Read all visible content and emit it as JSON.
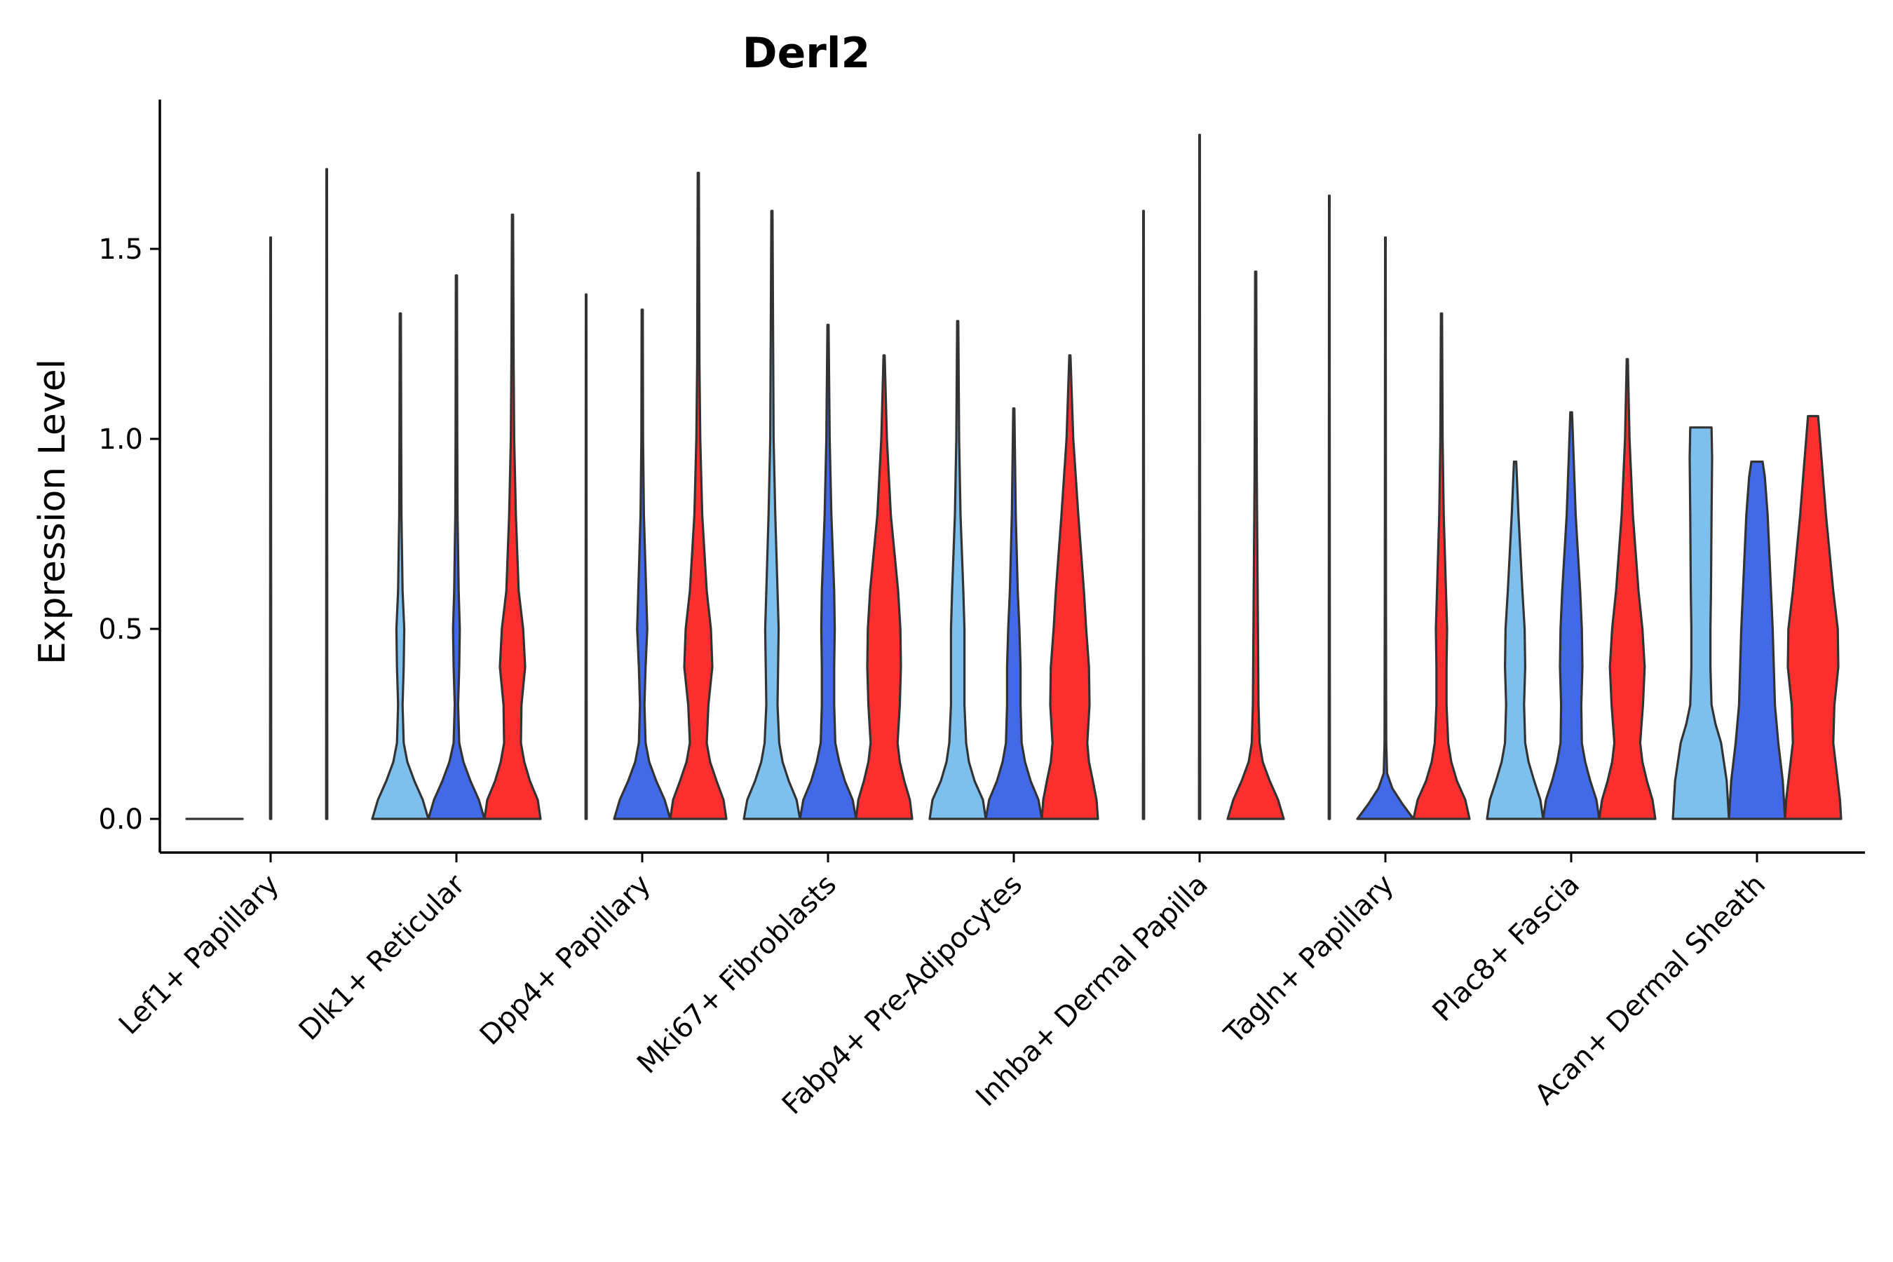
{
  "chart_data": {
    "type": "violin",
    "title": "Derl2",
    "xlabel": "",
    "ylabel": "Expression Level",
    "ylim": [
      -0.09,
      1.9
    ],
    "yticks": [
      0.0,
      0.5,
      1.0,
      1.5
    ],
    "ytick_labels": [
      "0.0",
      "0.5",
      "1.0",
      "1.5"
    ],
    "colors": {
      "group1": "#7dc0ee",
      "group2": "#4169e8",
      "group3": "#ff2f2f"
    },
    "categories": [
      "Lef1+ Papillary",
      "Dlk1+ Reticular",
      "Dpp4+ Papillary",
      "Mki67+ Fibroblasts",
      "Fabp4+ Pre-Adipocytes",
      "Inhba+ Dermal Papilla",
      "Tagln+ Papillary",
      "Plac8+ Fascia",
      "Acan+ Dermal Sheath"
    ],
    "violins": [
      {
        "category": "Lef1+ Papillary",
        "group": 1,
        "max": 0.0,
        "profile": [
          [
            0,
            1
          ],
          [
            0.01,
            0
          ]
        ]
      },
      {
        "category": "Lef1+ Papillary",
        "group": 2,
        "max": 1.53,
        "profile": [
          [
            0,
            0.02
          ],
          [
            0.1,
            0.02
          ],
          [
            1.53,
            0.01
          ]
        ]
      },
      {
        "category": "Lef1+ Papillary",
        "group": 3,
        "max": 1.71,
        "profile": [
          [
            0,
            0.02
          ],
          [
            0.1,
            0.02
          ],
          [
            1.71,
            0.01
          ]
        ]
      },
      {
        "category": "Dlk1+ Reticular",
        "group": 1,
        "max": 1.33,
        "profile": [
          [
            0,
            1
          ],
          [
            0.05,
            0.8
          ],
          [
            0.1,
            0.5
          ],
          [
            0.15,
            0.25
          ],
          [
            0.2,
            0.12
          ],
          [
            0.3,
            0.08
          ],
          [
            0.4,
            0.12
          ],
          [
            0.5,
            0.14
          ],
          [
            0.6,
            0.08
          ],
          [
            0.8,
            0.04
          ],
          [
            1.0,
            0.03
          ],
          [
            1.33,
            0.02
          ]
        ]
      },
      {
        "category": "Dlk1+ Reticular",
        "group": 2,
        "max": 1.43,
        "profile": [
          [
            0,
            1
          ],
          [
            0.05,
            0.8
          ],
          [
            0.1,
            0.5
          ],
          [
            0.15,
            0.25
          ],
          [
            0.2,
            0.1
          ],
          [
            0.3,
            0.06
          ],
          [
            0.4,
            0.1
          ],
          [
            0.5,
            0.12
          ],
          [
            0.6,
            0.08
          ],
          [
            0.8,
            0.04
          ],
          [
            1.0,
            0.03
          ],
          [
            1.43,
            0.02
          ]
        ]
      },
      {
        "category": "Dlk1+ Reticular",
        "group": 3,
        "max": 1.59,
        "profile": [
          [
            0,
            1
          ],
          [
            0.05,
            0.9
          ],
          [
            0.1,
            0.62
          ],
          [
            0.15,
            0.42
          ],
          [
            0.2,
            0.3
          ],
          [
            0.3,
            0.32
          ],
          [
            0.4,
            0.45
          ],
          [
            0.5,
            0.38
          ],
          [
            0.6,
            0.22
          ],
          [
            0.8,
            0.12
          ],
          [
            1.0,
            0.06
          ],
          [
            1.2,
            0.04
          ],
          [
            1.59,
            0.02
          ]
        ]
      },
      {
        "category": "Dpp4+ Papillary",
        "group": 1,
        "max": 1.38,
        "profile": [
          [
            0,
            0.02
          ],
          [
            0.1,
            0.02
          ],
          [
            1.38,
            0.01
          ]
        ]
      },
      {
        "category": "Dpp4+ Papillary",
        "group": 2,
        "max": 1.34,
        "profile": [
          [
            0,
            1
          ],
          [
            0.05,
            0.8
          ],
          [
            0.1,
            0.5
          ],
          [
            0.15,
            0.25
          ],
          [
            0.2,
            0.12
          ],
          [
            0.3,
            0.08
          ],
          [
            0.4,
            0.12
          ],
          [
            0.5,
            0.18
          ],
          [
            0.6,
            0.14
          ],
          [
            0.8,
            0.06
          ],
          [
            1.0,
            0.03
          ],
          [
            1.34,
            0.02
          ]
        ]
      },
      {
        "category": "Dpp4+ Papillary",
        "group": 3,
        "max": 1.7,
        "profile": [
          [
            0,
            1
          ],
          [
            0.05,
            0.9
          ],
          [
            0.1,
            0.65
          ],
          [
            0.15,
            0.42
          ],
          [
            0.2,
            0.3
          ],
          [
            0.3,
            0.36
          ],
          [
            0.4,
            0.5
          ],
          [
            0.5,
            0.45
          ],
          [
            0.6,
            0.3
          ],
          [
            0.8,
            0.14
          ],
          [
            1.0,
            0.07
          ],
          [
            1.2,
            0.04
          ],
          [
            1.7,
            0.02
          ]
        ]
      },
      {
        "category": "Mki67+ Fibroblasts",
        "group": 1,
        "max": 1.6,
        "profile": [
          [
            0,
            1
          ],
          [
            0.05,
            0.88
          ],
          [
            0.1,
            0.6
          ],
          [
            0.15,
            0.38
          ],
          [
            0.2,
            0.26
          ],
          [
            0.3,
            0.2
          ],
          [
            0.4,
            0.22
          ],
          [
            0.5,
            0.24
          ],
          [
            0.6,
            0.2
          ],
          [
            0.8,
            0.12
          ],
          [
            1.0,
            0.06
          ],
          [
            1.6,
            0.02
          ]
        ]
      },
      {
        "category": "Mki67+ Fibroblasts",
        "group": 2,
        "max": 1.3,
        "profile": [
          [
            0,
            1
          ],
          [
            0.05,
            0.88
          ],
          [
            0.1,
            0.6
          ],
          [
            0.15,
            0.4
          ],
          [
            0.2,
            0.26
          ],
          [
            0.3,
            0.22
          ],
          [
            0.4,
            0.22
          ],
          [
            0.5,
            0.24
          ],
          [
            0.6,
            0.22
          ],
          [
            0.8,
            0.12
          ],
          [
            1.0,
            0.06
          ],
          [
            1.3,
            0.02
          ]
        ]
      },
      {
        "category": "Mki67+ Fibroblasts",
        "group": 3,
        "max": 1.22,
        "profile": [
          [
            0,
            1
          ],
          [
            0.05,
            0.92
          ],
          [
            0.1,
            0.72
          ],
          [
            0.15,
            0.56
          ],
          [
            0.2,
            0.48
          ],
          [
            0.3,
            0.56
          ],
          [
            0.4,
            0.6
          ],
          [
            0.5,
            0.58
          ],
          [
            0.6,
            0.5
          ],
          [
            0.8,
            0.24
          ],
          [
            1.0,
            0.1
          ],
          [
            1.22,
            0.02
          ]
        ]
      },
      {
        "category": "Fabp4+ Pre-Adipocytes",
        "group": 1,
        "max": 1.31,
        "profile": [
          [
            0,
            1
          ],
          [
            0.05,
            0.9
          ],
          [
            0.1,
            0.6
          ],
          [
            0.15,
            0.4
          ],
          [
            0.2,
            0.3
          ],
          [
            0.3,
            0.24
          ],
          [
            0.4,
            0.24
          ],
          [
            0.5,
            0.24
          ],
          [
            0.6,
            0.2
          ],
          [
            0.8,
            0.1
          ],
          [
            1.0,
            0.05
          ],
          [
            1.31,
            0.02
          ]
        ]
      },
      {
        "category": "Fabp4+ Pre-Adipocytes",
        "group": 2,
        "max": 1.08,
        "profile": [
          [
            0,
            1
          ],
          [
            0.05,
            0.88
          ],
          [
            0.1,
            0.6
          ],
          [
            0.15,
            0.4
          ],
          [
            0.2,
            0.28
          ],
          [
            0.3,
            0.24
          ],
          [
            0.4,
            0.24
          ],
          [
            0.5,
            0.2
          ],
          [
            0.6,
            0.14
          ],
          [
            0.8,
            0.07
          ],
          [
            1.08,
            0.02
          ]
        ]
      },
      {
        "category": "Fabp4+ Pre-Adipocytes",
        "group": 3,
        "max": 1.22,
        "profile": [
          [
            0,
            1
          ],
          [
            0.05,
            0.95
          ],
          [
            0.1,
            0.82
          ],
          [
            0.15,
            0.68
          ],
          [
            0.2,
            0.62
          ],
          [
            0.3,
            0.7
          ],
          [
            0.4,
            0.68
          ],
          [
            0.5,
            0.58
          ],
          [
            0.6,
            0.5
          ],
          [
            0.8,
            0.3
          ],
          [
            1.0,
            0.12
          ],
          [
            1.22,
            0.02
          ]
        ]
      },
      {
        "category": "Inhba+ Dermal Papilla",
        "group": 1,
        "max": 1.6,
        "profile": [
          [
            0,
            0.02
          ],
          [
            0.1,
            0.02
          ],
          [
            1.6,
            0.01
          ]
        ]
      },
      {
        "category": "Inhba+ Dermal Papilla",
        "group": 2,
        "max": 1.8,
        "profile": [
          [
            0,
            0.02
          ],
          [
            0.1,
            0.02
          ],
          [
            1.8,
            0.01
          ]
        ]
      },
      {
        "category": "Inhba+ Dermal Papilla",
        "group": 3,
        "max": 1.44,
        "profile": [
          [
            0,
            1
          ],
          [
            0.05,
            0.8
          ],
          [
            0.1,
            0.5
          ],
          [
            0.15,
            0.25
          ],
          [
            0.2,
            0.14
          ],
          [
            0.3,
            0.1
          ],
          [
            0.5,
            0.08
          ],
          [
            0.7,
            0.06
          ],
          [
            0.9,
            0.04
          ],
          [
            1.1,
            0.03
          ],
          [
            1.44,
            0.02
          ]
        ]
      },
      {
        "category": "Tagln+ Papillary",
        "group": 1,
        "max": 1.64,
        "profile": [
          [
            0,
            0.02
          ],
          [
            0.1,
            0.02
          ],
          [
            1.64,
            0.01
          ]
        ]
      },
      {
        "category": "Tagln+ Papillary",
        "group": 2,
        "max": 1.53,
        "profile": [
          [
            0,
            1
          ],
          [
            0.04,
            0.6
          ],
          [
            0.08,
            0.25
          ],
          [
            0.12,
            0.06
          ],
          [
            0.2,
            0.03
          ],
          [
            0.6,
            0.02
          ],
          [
            1.53,
            0.01
          ]
        ]
      },
      {
        "category": "Tagln+ Papillary",
        "group": 3,
        "max": 1.33,
        "profile": [
          [
            0,
            1
          ],
          [
            0.05,
            0.85
          ],
          [
            0.1,
            0.55
          ],
          [
            0.15,
            0.35
          ],
          [
            0.2,
            0.24
          ],
          [
            0.3,
            0.18
          ],
          [
            0.4,
            0.18
          ],
          [
            0.5,
            0.2
          ],
          [
            0.6,
            0.16
          ],
          [
            0.8,
            0.08
          ],
          [
            1.0,
            0.04
          ],
          [
            1.33,
            0.02
          ]
        ]
      },
      {
        "category": "Plac8+ Fascia",
        "group": 1,
        "max": 0.94,
        "profile": [
          [
            0,
            1
          ],
          [
            0.05,
            0.9
          ],
          [
            0.1,
            0.68
          ],
          [
            0.15,
            0.48
          ],
          [
            0.2,
            0.36
          ],
          [
            0.3,
            0.32
          ],
          [
            0.4,
            0.36
          ],
          [
            0.5,
            0.34
          ],
          [
            0.6,
            0.26
          ],
          [
            0.8,
            0.12
          ],
          [
            0.94,
            0.04
          ]
        ]
      },
      {
        "category": "Plac8+ Fascia",
        "group": 2,
        "max": 1.07,
        "profile": [
          [
            0,
            1
          ],
          [
            0.05,
            0.9
          ],
          [
            0.1,
            0.68
          ],
          [
            0.15,
            0.5
          ],
          [
            0.2,
            0.38
          ],
          [
            0.3,
            0.36
          ],
          [
            0.4,
            0.4
          ],
          [
            0.5,
            0.38
          ],
          [
            0.6,
            0.32
          ],
          [
            0.8,
            0.16
          ],
          [
            1.07,
            0.03
          ]
        ]
      },
      {
        "category": "Plac8+ Fascia",
        "group": 3,
        "max": 1.21,
        "profile": [
          [
            0,
            1
          ],
          [
            0.05,
            0.9
          ],
          [
            0.1,
            0.7
          ],
          [
            0.15,
            0.54
          ],
          [
            0.2,
            0.46
          ],
          [
            0.3,
            0.56
          ],
          [
            0.4,
            0.62
          ],
          [
            0.5,
            0.54
          ],
          [
            0.6,
            0.4
          ],
          [
            0.8,
            0.2
          ],
          [
            1.0,
            0.08
          ],
          [
            1.21,
            0.02
          ]
        ]
      },
      {
        "category": "Acan+ Dermal Sheath",
        "group": 1,
        "max": 1.03,
        "profile": [
          [
            0,
            1
          ],
          [
            0.1,
            0.92
          ],
          [
            0.2,
            0.72
          ],
          [
            0.25,
            0.52
          ],
          [
            0.3,
            0.38
          ],
          [
            0.4,
            0.34
          ],
          [
            0.5,
            0.34
          ],
          [
            0.6,
            0.36
          ],
          [
            0.8,
            0.38
          ],
          [
            0.95,
            0.4
          ],
          [
            1.03,
            0.38
          ]
        ]
      },
      {
        "category": "Acan+ Dermal Sheath",
        "group": 2,
        "max": 0.94,
        "profile": [
          [
            0,
            1
          ],
          [
            0.1,
            0.92
          ],
          [
            0.2,
            0.76
          ],
          [
            0.3,
            0.64
          ],
          [
            0.4,
            0.6
          ],
          [
            0.5,
            0.56
          ],
          [
            0.6,
            0.5
          ],
          [
            0.8,
            0.38
          ],
          [
            0.9,
            0.28
          ],
          [
            0.94,
            0.2
          ]
        ]
      },
      {
        "category": "Acan+ Dermal Sheath",
        "group": 3,
        "max": 1.06,
        "profile": [
          [
            0,
            1
          ],
          [
            0.05,
            0.96
          ],
          [
            0.1,
            0.88
          ],
          [
            0.2,
            0.72
          ],
          [
            0.3,
            0.76
          ],
          [
            0.4,
            0.9
          ],
          [
            0.5,
            0.88
          ],
          [
            0.6,
            0.72
          ],
          [
            0.8,
            0.46
          ],
          [
            0.95,
            0.3
          ],
          [
            1.06,
            0.18
          ]
        ]
      }
    ]
  }
}
